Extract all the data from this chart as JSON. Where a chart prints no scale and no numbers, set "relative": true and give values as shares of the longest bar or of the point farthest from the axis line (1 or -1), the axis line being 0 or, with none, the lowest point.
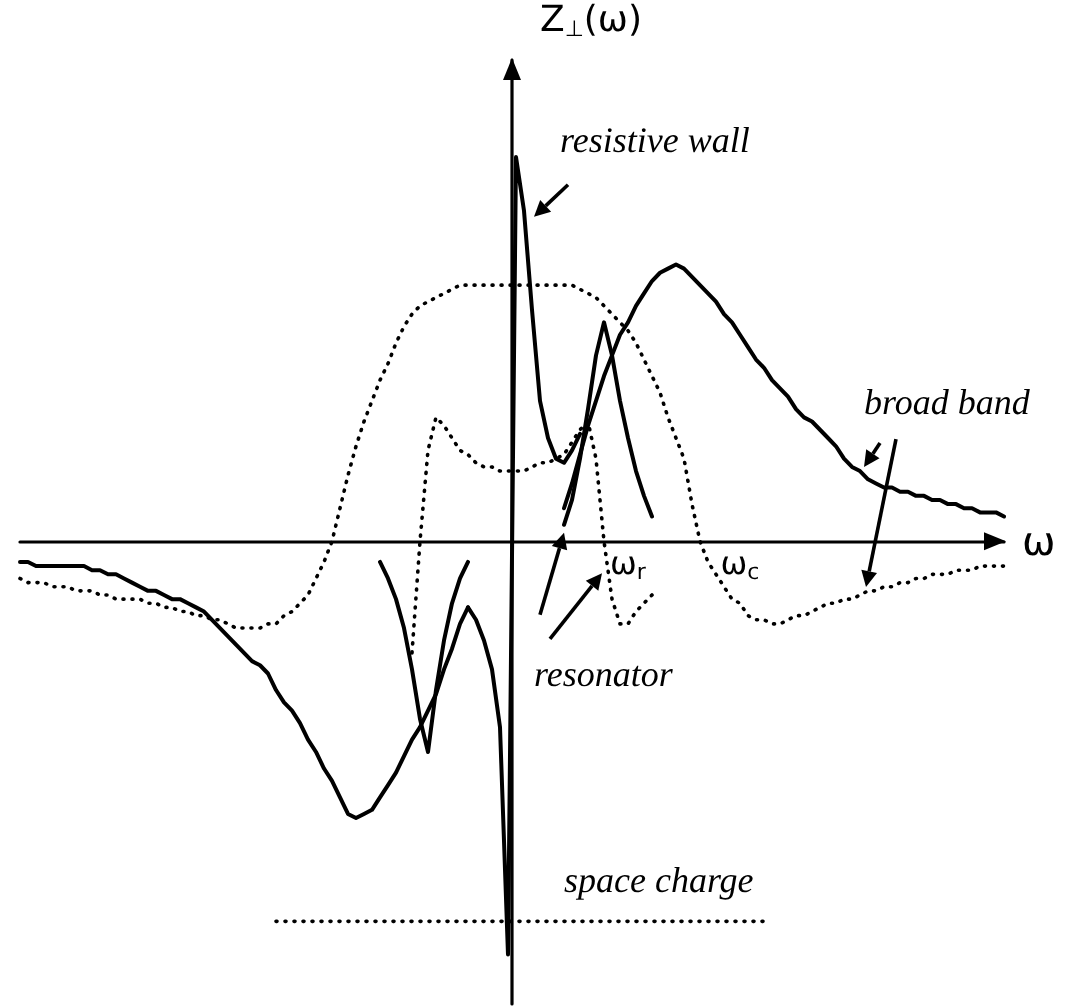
{
  "chart_data": {
    "type": "line",
    "relative": true,
    "marker": "none",
    "xlabel": "ω",
    "ylabel": "Z$_{⊥}$(ω)",
    "categories": [
      null,
      null,
      null,
      null,
      null,
      null,
      null,
      null,
      null,
      null,
      null,
      null,
      null,
      null,
      null,
      null,
      null,
      null,
      null,
      null,
      null,
      null,
      null,
      null,
      null,
      null,
      null,
      null,
      null,
      null,
      null,
      null,
      null,
      null,
      null,
      null,
      null,
      null,
      null,
      null,
      null,
      null,
      null,
      null,
      null,
      null,
      null,
      null,
      null,
      null,
      null,
      null,
      null,
      null,
      null,
      null,
      null,
      null,
      null,
      null,
      null,
      null,
      null,
      null,
      null,
      null,
      null,
      null,
      null,
      null,
      null,
      null,
      null,
      null,
      null,
      null,
      "ω$_{r}$",
      null,
      null,
      null,
      null,
      null,
      null,
      null,
      null,
      null,
      null,
      null,
      null,
      null,
      "ω$_{c}$",
      null,
      null,
      null,
      null,
      null,
      null,
      null,
      null,
      null,
      null,
      null,
      null,
      null,
      null,
      null,
      null,
      null,
      null,
      null,
      null,
      null,
      null,
      null,
      null,
      null,
      null,
      null,
      null,
      null,
      null,
      null,
      null,
      null
    ],
    "series": [
      {
        "name": "resistive wall",
        "color": "#000000",
        "line_style": "solid",
        "values": [
          null,
          null,
          null,
          null,
          null,
          null,
          null,
          null,
          null,
          null,
          null,
          null,
          null,
          null,
          null,
          null,
          null,
          null,
          null,
          null,
          null,
          null,
          null,
          null,
          null,
          null,
          null,
          null,
          null,
          null,
          null,
          null,
          null,
          null,
          null,
          null,
          null,
          null,
          null,
          null,
          null,
          null,
          null,
          null,
          null,
          null,
          null,
          null,
          null,
          null,
          null,
          null,
          null,
          null,
          null,
          null,
          -0.16,
          -0.19,
          -0.24,
          -0.31,
          -0.45,
          -1.0,
          0.93,
          0.8,
          0.56,
          0.34,
          0.25,
          0.2,
          0.19,
          0.22,
          0.26,
          null,
          null,
          null,
          null,
          null,
          null,
          null,
          null,
          null,
          null,
          null,
          null,
          null,
          null,
          null,
          null,
          null,
          null,
          null,
          null,
          null,
          null,
          null,
          null,
          null,
          null,
          null,
          null,
          null,
          null,
          null,
          null,
          null,
          null,
          null,
          null,
          null,
          null,
          null,
          null,
          null,
          null,
          null,
          null,
          null,
          null,
          null,
          null,
          null,
          null,
          null,
          null,
          null
        ]
      },
      {
        "name": "broad band",
        "color": "#000000",
        "line_style": "solid",
        "values": [
          -0.05,
          -0.05,
          -0.06,
          -0.06,
          -0.06,
          -0.06,
          -0.06,
          -0.06,
          -0.06,
          -0.07,
          -0.07,
          -0.08,
          -0.08,
          -0.09,
          -0.1,
          -0.11,
          -0.12,
          -0.12,
          -0.13,
          -0.14,
          -0.14,
          -0.15,
          -0.16,
          -0.17,
          -0.19,
          -0.21,
          -0.23,
          -0.25,
          -0.27,
          -0.29,
          -0.3,
          -0.32,
          -0.36,
          -0.39,
          -0.41,
          -0.44,
          -0.48,
          -0.51,
          -0.55,
          -0.58,
          -0.62,
          -0.66,
          -0.67,
          -0.66,
          -0.65,
          -0.62,
          -0.59,
          -0.56,
          -0.52,
          -0.48,
          -0.45,
          -0.41,
          -0.37,
          -0.31,
          -0.26,
          -0.2,
          -0.16,
          null,
          null,
          null,
          null,
          null,
          null,
          null,
          null,
          null,
          null,
          null,
          0.08,
          0.14,
          0.21,
          0.28,
          0.34,
          0.4,
          0.45,
          0.5,
          0.53,
          0.57,
          0.6,
          0.63,
          0.65,
          0.66,
          0.67,
          0.66,
          0.64,
          0.62,
          0.6,
          0.58,
          0.55,
          0.53,
          0.5,
          0.47,
          0.44,
          0.42,
          0.39,
          0.37,
          0.35,
          0.32,
          0.3,
          0.29,
          0.27,
          0.25,
          0.23,
          0.2,
          0.18,
          0.17,
          0.15,
          0.14,
          0.13,
          0.13,
          0.12,
          0.12,
          0.11,
          0.11,
          0.1,
          0.1,
          0.09,
          0.09,
          0.08,
          0.08,
          0.07,
          0.07,
          0.07,
          0.06
        ]
      },
      {
        "color": "#000000",
        "line_style": "dotted",
        "values": [
          -0.09,
          -0.1,
          -0.1,
          -0.1,
          -0.11,
          -0.11,
          -0.11,
          -0.12,
          -0.12,
          -0.12,
          -0.13,
          -0.13,
          -0.14,
          -0.14,
          -0.14,
          -0.14,
          -0.15,
          -0.15,
          -0.16,
          -0.16,
          -0.17,
          -0.17,
          -0.18,
          -0.18,
          -0.19,
          -0.19,
          -0.2,
          -0.21,
          -0.21,
          -0.21,
          -0.21,
          -0.2,
          -0.2,
          -0.18,
          -0.17,
          -0.15,
          -0.13,
          -0.09,
          -0.05,
          0.0,
          0.08,
          0.16,
          0.23,
          0.29,
          0.34,
          0.39,
          0.43,
          0.48,
          0.52,
          0.55,
          0.57,
          0.58,
          0.59,
          0.6,
          0.61,
          0.62,
          0.62,
          0.62,
          0.62,
          0.62,
          0.62,
          0.62,
          0.62,
          0.62,
          0.62,
          0.62,
          0.62,
          0.62,
          0.62,
          0.62,
          0.61,
          0.6,
          0.59,
          0.57,
          0.55,
          0.53,
          0.51,
          0.48,
          0.44,
          0.4,
          0.36,
          0.3,
          0.25,
          0.2,
          0.09,
          0.0,
          -0.05,
          -0.08,
          -0.11,
          -0.14,
          -0.15,
          -0.18,
          -0.19,
          -0.19,
          -0.2,
          -0.2,
          -0.19,
          -0.18,
          -0.18,
          -0.17,
          -0.16,
          -0.15,
          -0.15,
          -0.14,
          -0.14,
          -0.13,
          -0.12,
          -0.12,
          -0.11,
          -0.11,
          -0.1,
          -0.1,
          -0.09,
          -0.09,
          -0.08,
          -0.08,
          -0.08,
          -0.07,
          -0.07,
          -0.07,
          -0.06,
          -0.06,
          -0.06,
          -0.06
        ]
      },
      {
        "name": "resonator",
        "color": "#000000",
        "line_style": "solid",
        "values": [
          null,
          null,
          null,
          null,
          null,
          null,
          null,
          null,
          null,
          null,
          null,
          null,
          null,
          null,
          null,
          null,
          null,
          null,
          null,
          null,
          null,
          null,
          null,
          null,
          null,
          null,
          null,
          null,
          null,
          null,
          null,
          null,
          null,
          null,
          null,
          null,
          null,
          null,
          null,
          null,
          null,
          null,
          null,
          null,
          null,
          -0.05,
          -0.09,
          -0.14,
          -0.21,
          -0.31,
          -0.43,
          -0.51,
          -0.36,
          -0.24,
          -0.15,
          -0.09,
          -0.05,
          null,
          null,
          null,
          null,
          null,
          null,
          null,
          null,
          null,
          null,
          null,
          0.04,
          0.1,
          0.2,
          0.32,
          0.45,
          0.53,
          0.45,
          0.34,
          0.25,
          0.17,
          0.11,
          0.06,
          null,
          null,
          null,
          null,
          null,
          null,
          null,
          null,
          null,
          null,
          null,
          null,
          null,
          null,
          null,
          null,
          null,
          null,
          null,
          null,
          null,
          null,
          null,
          null,
          null,
          null,
          null,
          null,
          null,
          null,
          null,
          null,
          null,
          null,
          null,
          null,
          null,
          null,
          null,
          null,
          null,
          null,
          null,
          null
        ]
      },
      {
        "color": "#000000",
        "line_style": "dotted",
        "values": [
          null,
          null,
          null,
          null,
          null,
          null,
          null,
          null,
          null,
          null,
          null,
          null,
          null,
          null,
          null,
          null,
          null,
          null,
          null,
          null,
          null,
          null,
          null,
          null,
          null,
          null,
          null,
          null,
          null,
          null,
          null,
          null,
          null,
          null,
          null,
          null,
          null,
          null,
          null,
          null,
          null,
          null,
          null,
          null,
          null,
          null,
          null,
          null,
          null,
          -0.27,
          0.0,
          0.22,
          0.3,
          0.28,
          0.25,
          0.22,
          0.21,
          0.19,
          0.18,
          0.18,
          0.17,
          0.17,
          0.17,
          0.17,
          0.18,
          0.19,
          0.19,
          0.2,
          0.21,
          0.24,
          0.27,
          0.29,
          0.2,
          0.0,
          -0.14,
          -0.2,
          -0.2,
          -0.17,
          -0.15,
          -0.13,
          null,
          null,
          null,
          null,
          null,
          null,
          null,
          null,
          null,
          null,
          null,
          null,
          null,
          null,
          null,
          null,
          null,
          null,
          null,
          null,
          null,
          null,
          null,
          null,
          null,
          null,
          null,
          null,
          null,
          null,
          null,
          null,
          null,
          null,
          null,
          null,
          null,
          null,
          null,
          null,
          null,
          null,
          null,
          null
        ]
      },
      {
        "name": "space charge",
        "color": "#000000",
        "line_style": "dotted",
        "values": [
          null,
          null,
          null,
          null,
          null,
          null,
          null,
          null,
          null,
          null,
          null,
          null,
          null,
          null,
          null,
          null,
          null,
          null,
          null,
          null,
          null,
          null,
          null,
          null,
          null,
          null,
          null,
          null,
          null,
          null,
          null,
          null,
          -0.92,
          -0.92,
          -0.92,
          -0.92,
          -0.92,
          -0.92,
          -0.92,
          -0.92,
          -0.92,
          -0.92,
          -0.92,
          -0.92,
          -0.92,
          -0.92,
          -0.92,
          -0.92,
          -0.92,
          -0.92,
          -0.92,
          -0.92,
          -0.92,
          -0.92,
          -0.92,
          -0.92,
          -0.92,
          -0.92,
          -0.92,
          -0.92,
          -0.92,
          -0.92,
          -0.92,
          -0.92,
          -0.92,
          -0.92,
          -0.92,
          -0.92,
          -0.92,
          -0.92,
          -0.92,
          -0.92,
          -0.92,
          -0.92,
          -0.92,
          -0.92,
          -0.92,
          -0.92,
          -0.92,
          -0.92,
          -0.92,
          -0.92,
          -0.92,
          -0.92,
          -0.92,
          -0.92,
          -0.92,
          -0.92,
          -0.92,
          -0.92,
          -0.92,
          -0.92,
          -0.92,
          -0.92,
          null,
          null,
          null,
          null,
          null,
          null,
          null,
          null,
          null,
          null,
          null,
          null,
          null,
          null,
          null,
          null,
          null,
          null,
          null,
          null,
          null,
          null,
          null,
          null,
          null,
          null,
          null,
          null,
          null,
          null
        ]
      }
    ]
  }
}
